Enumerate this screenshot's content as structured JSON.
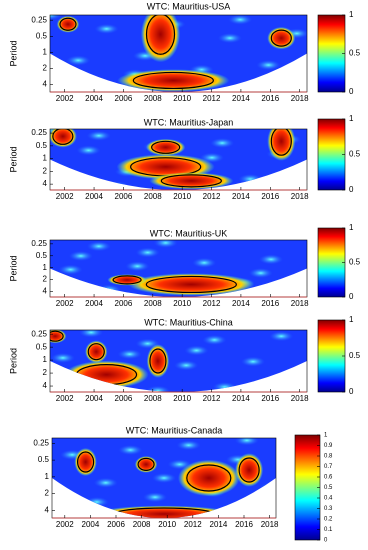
{
  "chart_data": [
    {
      "type": "heatmap",
      "title": "WTC: Mauritius-USA",
      "ylabel": "Period",
      "xlim": [
        2001,
        2018.5
      ],
      "xticks": [
        2002,
        2004,
        2006,
        2008,
        2010,
        2012,
        2014,
        2016,
        2018
      ],
      "ylim": [
        0.2,
        5.5
      ],
      "yticks": [
        0.25,
        0.5,
        1,
        2,
        4
      ],
      "log_y": true,
      "clim": [
        0,
        1
      ],
      "cticks": [
        0,
        0.5,
        1
      ]
    },
    {
      "type": "heatmap",
      "title": "WTC: Mauritius-Japan",
      "ylabel": "Period",
      "xlim": [
        2001,
        2018.5
      ],
      "xticks": [
        2002,
        2004,
        2006,
        2008,
        2010,
        2012,
        2014,
        2016,
        2018
      ],
      "ylim": [
        0.2,
        5.5
      ],
      "yticks": [
        0.25,
        0.5,
        1,
        2,
        4
      ],
      "log_y": true,
      "clim": [
        0,
        1
      ],
      "cticks": [
        0,
        0.5,
        1
      ]
    },
    {
      "type": "heatmap",
      "title": "WTC: Mauritius-UK",
      "ylabel": "Period",
      "xlim": [
        2001,
        2018.5
      ],
      "xticks": [
        2002,
        2004,
        2006,
        2008,
        2010,
        2012,
        2014,
        2016,
        2018
      ],
      "ylim": [
        0.2,
        5.5
      ],
      "yticks": [
        0.25,
        0.5,
        1,
        2,
        4
      ],
      "log_y": true,
      "clim": [
        0,
        1
      ],
      "cticks": [
        0,
        0.5,
        1
      ]
    },
    {
      "type": "heatmap",
      "title": "WTC: Mauritius-China",
      "ylabel": "Period",
      "xlim": [
        2001,
        2018.5
      ],
      "xticks": [
        2002,
        2004,
        2006,
        2008,
        2010,
        2012,
        2014,
        2016,
        2018
      ],
      "ylim": [
        0.2,
        5.5
      ],
      "yticks": [
        0.25,
        0.5,
        1,
        2,
        4
      ],
      "log_y": true,
      "clim": [
        0,
        1
      ],
      "cticks": [
        0,
        0.5,
        1
      ]
    },
    {
      "type": "heatmap",
      "title": "WTC: Mauritius-Canada",
      "xlim": [
        2001,
        2018.5
      ],
      "xticks": [
        2002,
        2004,
        2006,
        2008,
        2010,
        2012,
        2014,
        2016,
        2018
      ],
      "ylim": [
        0.2,
        5.5
      ],
      "yticks": [
        0.25,
        0.5,
        1,
        2,
        4
      ],
      "log_y": true,
      "clim": [
        0,
        1
      ],
      "cticks": [
        0,
        0.1,
        0.2,
        0.3,
        0.4,
        0.5,
        0.6,
        0.7,
        0.8,
        0.9,
        1
      ]
    }
  ]
}
